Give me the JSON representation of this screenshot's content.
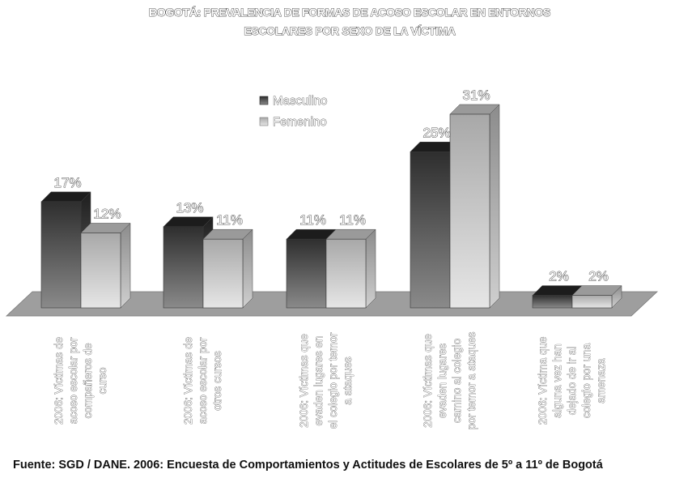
{
  "chart_data": {
    "type": "bar",
    "title_lines": [
      "BOGOTÁ: PREVALENCIA DE FORMAS DE ACOSO ESCOLAR EN ENTORNOS",
      "ESCOLARES POR SEXO DE LA VÍCTIMA"
    ],
    "categories": [
      [
        "2006: Víctimas de",
        "acoso escolar por",
        "compañeros de",
        "curso"
      ],
      [
        "2006: Víctimas de",
        "acoso escolar por",
        "otros cursos"
      ],
      [
        "2006: Víctimas que",
        "evaden lugares en",
        "el colegio por temor",
        "a ataques"
      ],
      [
        "2006: Víctimas que",
        "evaden lugares",
        "camino al colegio",
        "por temor a ataques"
      ],
      [
        "2006: Víctima que",
        "alguna vez han",
        "dejado de ir al",
        "colegio por una",
        "amenaza"
      ]
    ],
    "series": [
      {
        "name": "Masculino",
        "values": [
          17,
          13,
          11,
          25,
          2
        ],
        "labels": [
          "17%",
          "13%",
          "11%",
          "25%",
          "2%"
        ]
      },
      {
        "name": "Femenino",
        "values": [
          12,
          11,
          11,
          31,
          2
        ],
        "labels": [
          "12%",
          "11%",
          "11%",
          "31%",
          "2%"
        ]
      }
    ],
    "ylim": [
      0,
      31
    ],
    "legend_position": "top-center",
    "grid": false,
    "colors": {
      "masculino": "#404040",
      "femenino": "#bdbdbd",
      "floor": "#9e9e9e"
    }
  },
  "source": "Fuente: SGD / DANE. 2006: Encuesta de  Comportamientos y Actitudes de Escolares de 5º a 11º de Bogotá"
}
